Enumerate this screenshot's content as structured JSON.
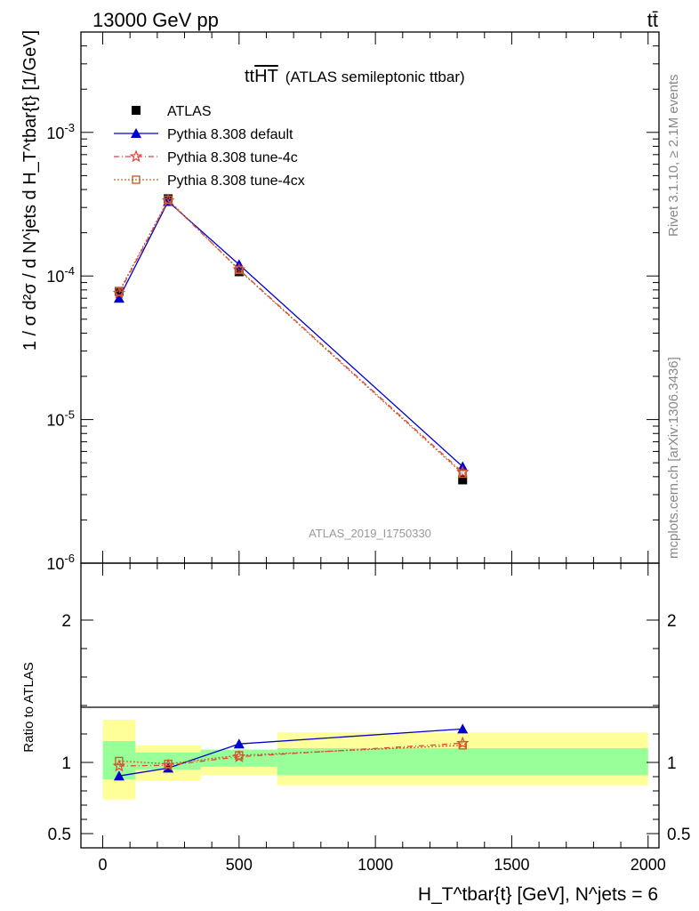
{
  "header": {
    "energy_label": "13000 GeV pp",
    "process_label": "tt̄"
  },
  "side_labels": {
    "rivet": "Rivet 3.1.10, ≥ 2.1M events",
    "mcplots": "mcplots.cern.ch [arXiv:1306.3436]"
  },
  "chart_data": [
    {
      "type": "line",
      "panel": "main",
      "title_prefix": "tt",
      "title_overline": "HT",
      "title_suffix": "(ATLAS semileptonic ttbar)",
      "watermark": "ATLAS_2019_I1750330",
      "ylabel": "1 / σ d²σ / d N^jets d H_T^tbar{t} [1/GeV]",
      "y_scale": "log",
      "ylim": [
        1e-06,
        0.005
      ],
      "xlim": [
        -80,
        2040
      ],
      "y_tick_labels": [
        "10^-6",
        "10^-5",
        "10^-4",
        "10^-3"
      ],
      "legend_position": "top-left",
      "series": [
        {
          "name": "ATLAS",
          "color": "#000000",
          "marker": "square",
          "x": [
            60,
            240,
            500,
            1320
          ],
          "y": [
            7.8e-05,
            0.000345,
            0.000107,
            3.8e-06
          ]
        },
        {
          "name": "Pythia 8.308 default",
          "color": "#0000cc",
          "marker": "triangle",
          "x": [
            60,
            240,
            500,
            1320
          ],
          "y": [
            7e-05,
            0.00033,
            0.00012,
            4.7e-06
          ]
        },
        {
          "name": "Pythia 8.308 tune-4c",
          "color": "#e8403a",
          "marker": "star",
          "x": [
            60,
            240,
            500,
            1320
          ],
          "y": [
            7.6e-05,
            0.000335,
            0.000111,
            4.3e-06
          ]
        },
        {
          "name": "Pythia 8.308 tune-4cx",
          "color": "#c0642a",
          "marker": "open-square",
          "x": [
            60,
            240,
            500,
            1320
          ],
          "y": [
            7.8e-05,
            0.00034,
            0.00011,
            4.2e-06
          ]
        }
      ]
    },
    {
      "type": "line",
      "panel": "ratio",
      "ylabel": "Ratio to ATLAS",
      "xlabel": "H_T^tbar{t} [GeV], N^jets = 6",
      "xlim": [
        -80,
        2040
      ],
      "ylim": [
        0.4,
        2.4
      ],
      "x_ticks": [
        0,
        500,
        1000,
        1500,
        2000
      ],
      "y_tick_labels": [
        "0.5",
        "1",
        "2"
      ],
      "bands": [
        {
          "x0": 0,
          "x1": 120,
          "green": [
            0.88,
            1.15
          ],
          "yellow": [
            0.74,
            1.3
          ]
        },
        {
          "x0": 120,
          "x1": 360,
          "green": [
            0.95,
            1.07
          ],
          "yellow": [
            0.87,
            1.12
          ]
        },
        {
          "x0": 360,
          "x1": 640,
          "green": [
            0.97,
            1.09
          ],
          "yellow": [
            0.91,
            1.08
          ]
        },
        {
          "x0": 640,
          "x1": 2000,
          "green": [
            0.91,
            1.1
          ],
          "yellow": [
            0.84,
            1.21
          ]
        }
      ],
      "series": [
        {
          "name": "Pythia 8.308 default",
          "color": "#0000cc",
          "marker": "triangle",
          "x": [
            60,
            240,
            500,
            1320
          ],
          "y": [
            0.905,
            0.96,
            1.13,
            1.235
          ]
        },
        {
          "name": "Pythia 8.308 tune-4c",
          "color": "#e8403a",
          "marker": "star",
          "x": [
            60,
            240,
            500,
            1320
          ],
          "y": [
            0.975,
            0.98,
            1.04,
            1.135
          ]
        },
        {
          "name": "Pythia 8.308 tune-4cx",
          "color": "#c0642a",
          "marker": "open-square",
          "x": [
            60,
            240,
            500,
            1320
          ],
          "y": [
            1.01,
            0.99,
            1.05,
            1.12
          ]
        }
      ]
    }
  ]
}
